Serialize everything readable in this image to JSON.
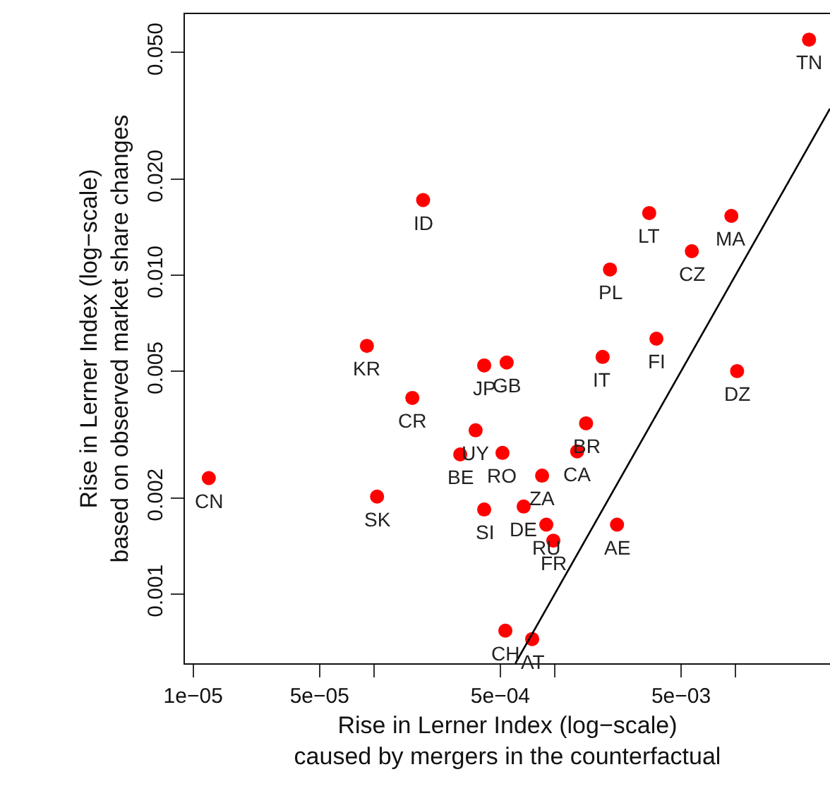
{
  "chart_data": {
    "type": "scatter",
    "xlabel": "Rise in Lerner Index (log−scale)\ncaused by mergers in the counterfactual",
    "ylabel": "Rise in Lerner Index (log−scale)\nbased on observed market share changes",
    "log": "xy",
    "marker": "circle",
    "xlim": [
      9e-06,
      0.0333
    ],
    "ylim": [
      0.000606,
      0.0659
    ],
    "xticks": [
      {
        "value": 1e-05,
        "label": "1e−05"
      },
      {
        "value": 5e-05,
        "label": "5e−05"
      },
      {
        "value": 0.0001,
        "label": null
      },
      {
        "value": 0.0005,
        "label": "5e−04"
      },
      {
        "value": 0.001,
        "label": null
      },
      {
        "value": 0.005,
        "label": "5e−03"
      },
      {
        "value": 0.01,
        "label": null
      }
    ],
    "yticks": [
      0.001,
      0.002,
      0.005,
      {
        "value": 0.01,
        "label": "0.010"
      },
      {
        "value": 0.02,
        "label": "0.020"
      },
      {
        "value": 0.05,
        "label": "0.050"
      }
    ],
    "series": [
      {
        "color": "#ff0000",
        "x": [
          0.0255,
          0.000187,
          9.14e-05,
          0.000163,
          1.22e-05,
          0.000104,
          0.00333,
          0.00948,
          0.00573,
          0.00202,
          0.00365,
          0.00184,
          0.0102,
          0.000407,
          0.000542,
          0.000365,
          0.0003,
          0.000514,
          0.00149,
          0.00133,
          0.000851,
          0.000407,
          0.000673,
          0.000898,
          0.000982,
          0.00221,
          0.000533,
          0.00075
        ],
        "values": [
          0.0548,
          0.0172,
          0.006,
          0.00412,
          0.00231,
          0.00202,
          0.01566,
          0.01534,
          0.01189,
          0.01042,
          0.00632,
          0.00554,
          0.005,
          0.00521,
          0.00532,
          0.00326,
          0.00274,
          0.00277,
          0.00343,
          0.0028,
          0.00235,
          0.00184,
          0.00188,
          0.00165,
          0.00147,
          0.00165,
          0.000767,
          0.000722
        ]
      },
      {
        "type": "line",
        "color": "#000000",
        "marker": "none",
        "line_style": "solid",
        "x": [
          0.000606,
          0.0333
        ],
        "values": [
          0.000606,
          0.0333
        ]
      }
    ],
    "annotations": [
      {
        "text": "TN",
        "x": 0.0255,
        "y": 0.0548
      },
      {
        "text": "ID",
        "x": 0.000187,
        "y": 0.0172
      },
      {
        "text": "KR",
        "x": 9.14e-05,
        "y": 0.006
      },
      {
        "text": "CR",
        "x": 0.000163,
        "y": 0.00412
      },
      {
        "text": "CN",
        "x": 1.22e-05,
        "y": 0.00231
      },
      {
        "text": "SK",
        "x": 0.000104,
        "y": 0.00202
      },
      {
        "text": "LT",
        "x": 0.00333,
        "y": 0.01566
      },
      {
        "text": "MA",
        "x": 0.00948,
        "y": 0.01534
      },
      {
        "text": "CZ",
        "x": 0.00573,
        "y": 0.01189
      },
      {
        "text": "PL",
        "x": 0.00202,
        "y": 0.01042
      },
      {
        "text": "FI",
        "x": 0.00365,
        "y": 0.00632
      },
      {
        "text": "IT",
        "x": 0.00184,
        "y": 0.00554
      },
      {
        "text": "DZ",
        "x": 0.0102,
        "y": 0.005
      },
      {
        "text": "JP",
        "x": 0.000407,
        "y": 0.00521
      },
      {
        "text": "GB",
        "x": 0.000542,
        "y": 0.00532
      },
      {
        "text": "UY",
        "x": 0.000365,
        "y": 0.00326
      },
      {
        "text": "BE",
        "x": 0.0003,
        "y": 0.00274
      },
      {
        "text": "RO",
        "x": 0.000514,
        "y": 0.00277
      },
      {
        "text": "BR",
        "x": 0.00149,
        "y": 0.00343
      },
      {
        "text": "CA",
        "x": 0.00133,
        "y": 0.0028
      },
      {
        "text": "ZA",
        "x": 0.000851,
        "y": 0.00235
      },
      {
        "text": "SI",
        "x": 0.000407,
        "y": 0.00184
      },
      {
        "text": "DE",
        "x": 0.000673,
        "y": 0.00188
      },
      {
        "text": "RU",
        "x": 0.000898,
        "y": 0.00165
      },
      {
        "text": "FR",
        "x": 0.000982,
        "y": 0.00147
      },
      {
        "text": "AE",
        "x": 0.00221,
        "y": 0.00165
      },
      {
        "text": "CH",
        "x": 0.000533,
        "y": 0.000767
      },
      {
        "text": "AT",
        "x": 0.00075,
        "y": 0.000722
      }
    ]
  }
}
